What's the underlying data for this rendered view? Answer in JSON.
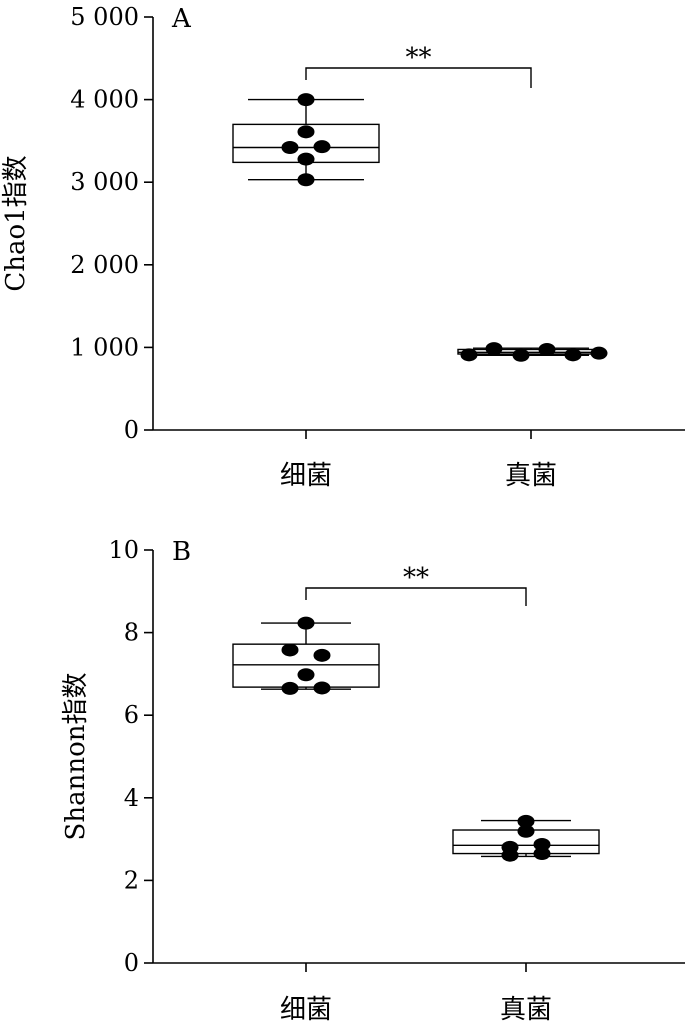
{
  "chart_data": [
    {
      "type": "box",
      "panel_label": "A",
      "ylabel": "Chao1指数",
      "ylim": [
        0,
        5000
      ],
      "yticks": [
        0,
        1000,
        2000,
        3000,
        4000,
        5000
      ],
      "ytick_labels": [
        "0",
        "1 000",
        "2 000",
        "3 000",
        "4 000",
        "5 000"
      ],
      "categories": [
        "细菌",
        "真菌"
      ],
      "boxes": [
        {
          "category": "细菌",
          "whisker_low": 3030,
          "q1": 3240,
          "median": 3420,
          "q3": 3700,
          "whisker_high": 4000,
          "points": [
            4000,
            3610,
            3420,
            3430,
            3280,
            3030
          ]
        },
        {
          "category": "真菌",
          "whisker_low": 905,
          "q1": 920,
          "median": 940,
          "q3": 975,
          "whisker_high": 990,
          "points": [
            910,
            985,
            905,
            975,
            910,
            930
          ]
        }
      ],
      "significance": {
        "between": [
          "细菌",
          "真菌"
        ],
        "label": "**"
      }
    },
    {
      "type": "box",
      "panel_label": "B",
      "ylabel": "Shannon指数",
      "ylim": [
        0,
        10
      ],
      "yticks": [
        0,
        2,
        4,
        6,
        8,
        10
      ],
      "ytick_labels": [
        "0",
        "2",
        "4",
        "6",
        "8",
        "10"
      ],
      "categories": [
        "细菌",
        "真菌"
      ],
      "boxes": [
        {
          "category": "细菌",
          "whisker_low": 6.63,
          "q1": 6.68,
          "median": 7.22,
          "q3": 7.72,
          "whisker_high": 8.23,
          "points": [
            8.23,
            7.58,
            7.45,
            6.98,
            6.65,
            6.66
          ]
        },
        {
          "category": "真菌",
          "whisker_low": 2.58,
          "q1": 2.65,
          "median": 2.85,
          "q3": 3.22,
          "whisker_high": 3.45,
          "points": [
            3.43,
            3.19,
            2.8,
            2.87,
            2.61,
            2.65
          ]
        }
      ],
      "significance": {
        "between": [
          "细菌",
          "真菌"
        ],
        "label": "**"
      }
    }
  ]
}
